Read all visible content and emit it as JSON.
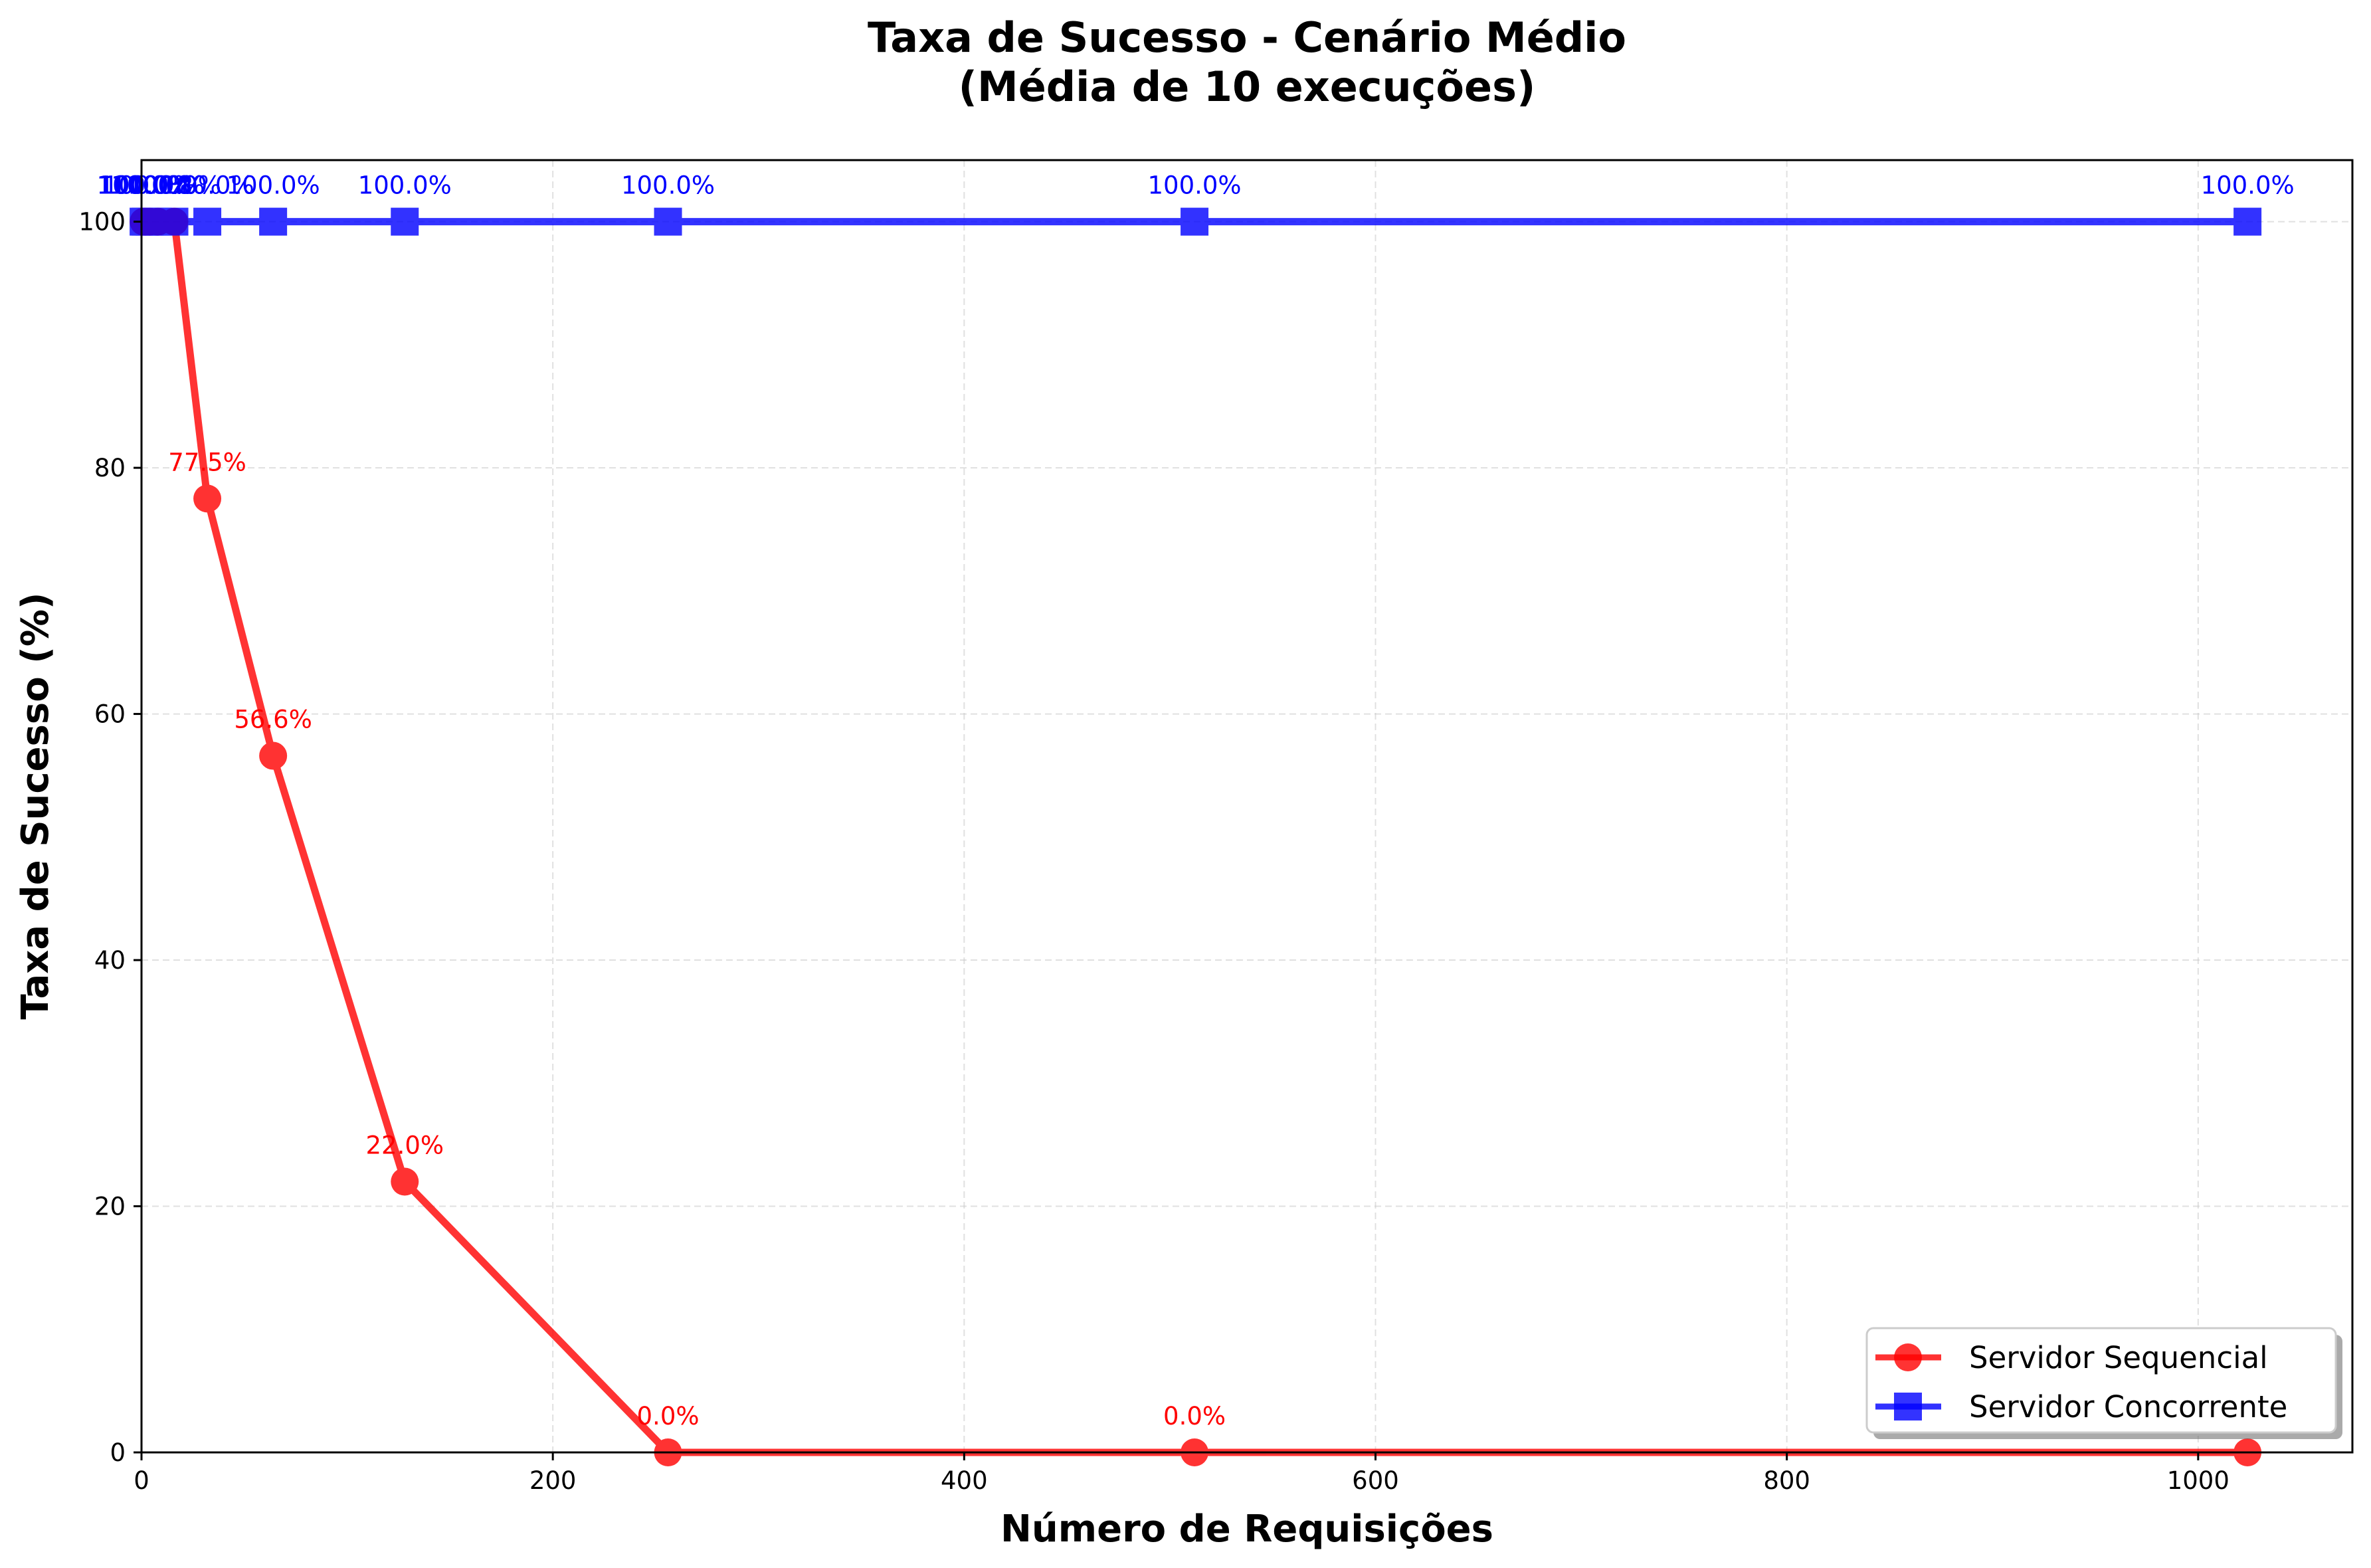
{
  "chart_data": {
    "type": "line",
    "title": "Taxa de Sucesso - Cenário Médio",
    "subtitle": "(Média de 10 execuções)",
    "xlabel": "Número de Requisições",
    "ylabel": "Taxa de Sucesso (%)",
    "xlim": [
      0,
      1075
    ],
    "ylim": [
      0,
      105
    ],
    "xticks": [
      0,
      200,
      400,
      600,
      800,
      1000
    ],
    "yticks": [
      0,
      20,
      40,
      60,
      80,
      100
    ],
    "grid": true,
    "legend_position": "lower-right",
    "series": [
      {
        "name": "Servidor Sequencial",
        "color": "#ff0000",
        "marker": "circle",
        "x": [
          1,
          2,
          4,
          8,
          16,
          32,
          64,
          128,
          256,
          512,
          1024
        ],
        "y": [
          100.0,
          100.0,
          100.0,
          100.0,
          100.0,
          77.5,
          56.6,
          22.0,
          0.0,
          0.0,
          0.0
        ],
        "labels": [
          "",
          "",
          "",
          "",
          "",
          "77.5%",
          "56.6%",
          "22.0%",
          "0.0%",
          "0.0%",
          ""
        ]
      },
      {
        "name": "Servidor Concorrente",
        "color": "#0000ff",
        "marker": "square",
        "x": [
          1,
          2,
          4,
          8,
          16,
          32,
          64,
          128,
          256,
          512,
          1024
        ],
        "y": [
          100.0,
          100.0,
          100.0,
          100.0,
          100.0,
          100.0,
          100.0,
          100.0,
          100.0,
          100.0,
          100.0
        ],
        "labels": [
          "100.0%",
          "100.0%",
          "100.0%",
          "100.0%",
          "100.0%",
          "100.0%",
          "100.0%",
          "100.0%",
          "100.0%",
          "100.0%",
          "100.0%"
        ]
      }
    ]
  }
}
